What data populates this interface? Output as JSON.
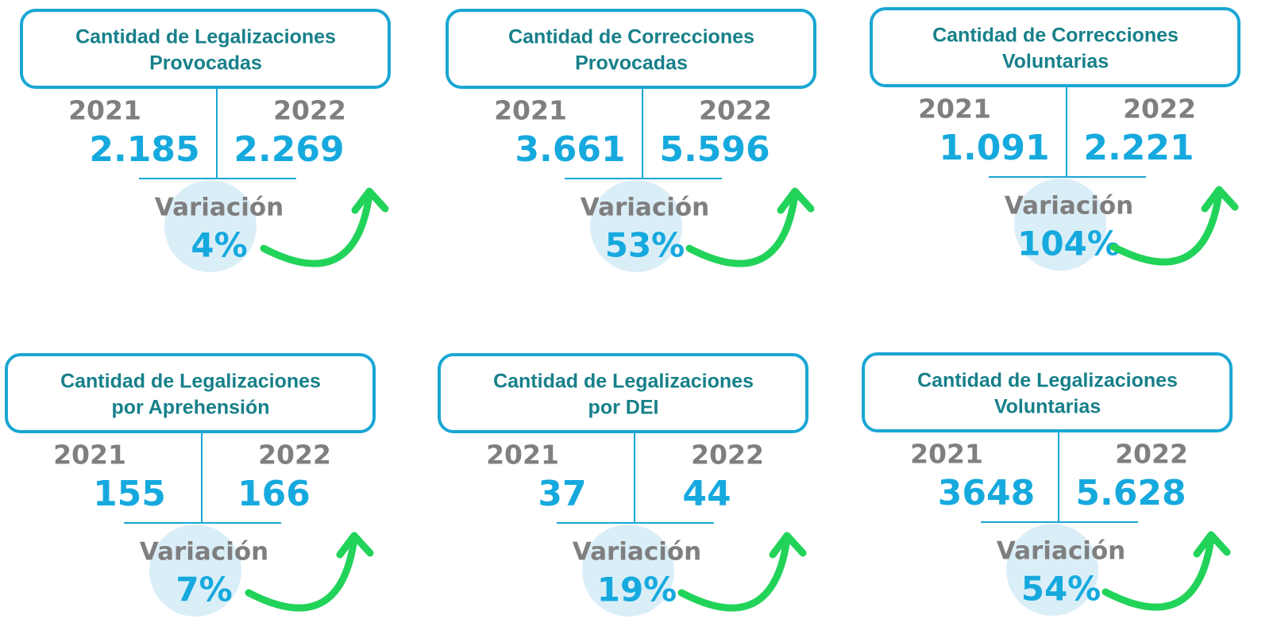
{
  "cards": [
    {
      "title": [
        "Cantidad de Legalizaciones",
        "Provocadas"
      ],
      "year_a": "2021",
      "year_b": "2022",
      "value_a": "2.185",
      "value_b": "2.269",
      "variation_label": "Variación",
      "variation": "4%"
    },
    {
      "title": [
        "Cantidad de Correcciones",
        "Provocadas"
      ],
      "year_a": "2021",
      "year_b": "2022",
      "value_a": "3.661",
      "value_b": "5.596",
      "variation_label": "Variación",
      "variation": "53%"
    },
    {
      "title": [
        "Cantidad de Correcciones",
        "Voluntarias"
      ],
      "year_a": "2021",
      "year_b": "2022",
      "value_a": "1.091",
      "value_b": "2.221",
      "variation_label": "Variación",
      "variation": "104%"
    },
    {
      "title": [
        "Cantidad de Legalizaciones",
        "por Aprehensión"
      ],
      "year_a": "2021",
      "year_b": "2022",
      "value_a": "155",
      "value_b": "166",
      "variation_label": "Variación",
      "variation": "7%"
    },
    {
      "title": [
        "Cantidad de Legalizaciones",
        "por DEI"
      ],
      "year_a": "2021",
      "year_b": "2022",
      "value_a": "37",
      "value_b": "44",
      "variation_label": "Variación",
      "variation": "19%"
    },
    {
      "title": [
        "Cantidad de Legalizaciones",
        "Voluntarias"
      ],
      "year_a": "2021",
      "year_b": "2022",
      "value_a": "3648",
      "value_b": "5.628",
      "variation_label": "Variación",
      "variation": "54%"
    }
  ]
}
